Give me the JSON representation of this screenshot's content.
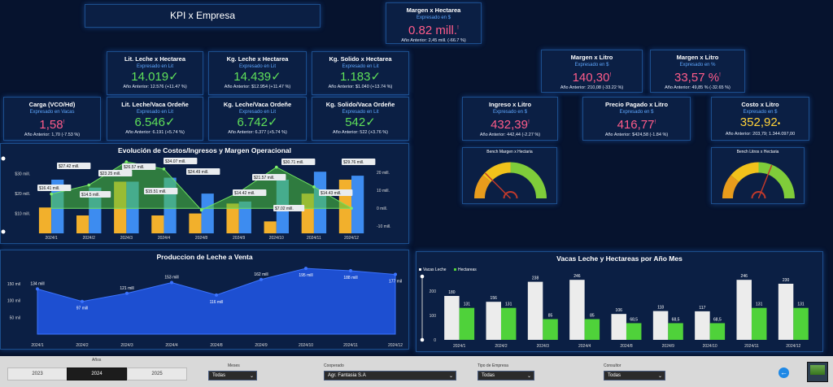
{
  "header": {
    "title": "KPI x Empresa"
  },
  "kpis": {
    "margen_hectarea": {
      "title": "Margen x Hectarea",
      "sub": "Expresado en $",
      "value": "0.82 mill.",
      "mark": "!",
      "prev": "Año Anterior: 2,45 mill. (-66.7 %)"
    },
    "lit_leche_hectarea": {
      "title": "Lit. Leche x Hectarea",
      "sub": "Expresado en Lit",
      "value": "14.019",
      "mark": "✓",
      "prev": "Año Anterior: 12.576 (+11.47 %)"
    },
    "kg_leche_hectarea": {
      "title": "Kg. Leche x Hectarea",
      "sub": "Expresado en Lit",
      "value": "14.439",
      "mark": "✓",
      "prev": "Año Anterior: $12.954 (+11.47 %)"
    },
    "kg_solido_hectarea": {
      "title": "Kg. Solido x Hectarea",
      "sub": "Expresado en Lit",
      "value": "1.183",
      "mark": "✓",
      "prev": "Año Anterior: $1.040 (+13.74 %)"
    },
    "carga": {
      "title": "Carga (VCO/Hd)",
      "sub": "Expresado en Vacas",
      "value": "1,58",
      "mark": "!",
      "prev": "Año Anterior: 1,70 (-7.53 %)"
    },
    "lit_leche_vaca": {
      "title": "Lit. Leche/Vaca Ordeñe",
      "sub": "Expresado en Lit",
      "value": "6.546",
      "mark": "✓",
      "prev": "Año Anterior: 6.191 (+5.74 %)"
    },
    "kg_leche_vaca": {
      "title": "Kg. Leche/Vaca Ordeñe",
      "sub": "Expresado en Lit",
      "value": "6.742",
      "mark": "✓",
      "prev": "Año Anterior: 6.377 (+5.74 %)"
    },
    "kg_solido_vaca": {
      "title": "Kg. Solido/Vaca Ordeñe",
      "sub": "Expresado en Lit",
      "value": "542",
      "mark": "✓",
      "prev": "Año Anterior: 522 (+3.76 %)"
    },
    "margen_litro": {
      "title": "Margen x Litro",
      "sub": "Expresado en $",
      "value": "140,30",
      "mark": "!",
      "prev": "Año Anterior: 210,08 (-33.22 %)"
    },
    "margen_litro_pct": {
      "title": "Margen x Litro",
      "sub": "Expresado en %",
      "value": "33,57 %",
      "mark": "!",
      "prev": "Año Anterior: 49,85 % (-32.65 %)"
    },
    "ingreso_litro": {
      "title": "Ingreso x Litro",
      "sub": "Expresado en $",
      "value": "432,39",
      "mark": "!",
      "prev": "Año Anterior: 442,44 (-2.27 %)"
    },
    "precio_litro": {
      "title": "Precio Pagado x Litro",
      "sub": "Expresado en $",
      "value": "416,77",
      "mark": "!",
      "prev": "Año Anterior: $424,58 (-1.84 %)"
    },
    "costo_litro": {
      "title": "Costo x Litro",
      "sub": "Expresado en $",
      "value": "352,92",
      "mark": "•",
      "prev": "Año Anterior: 203,79; 1.344.097,00"
    }
  },
  "gauges": [
    {
      "title": "Bench Margen x Hectaria",
      "needle": 0.25,
      "colors": [
        "#e89c1c",
        "#f1c21b",
        "#7fcc3a"
      ]
    },
    {
      "title": "Bench Litros x Hectaria",
      "needle": 0.62,
      "colors": [
        "#e89c1c",
        "#f1c21b",
        "#7fcc3a"
      ]
    }
  ],
  "chart_costos": {
    "title": "Evolución de Costos/Ingresos y Margen Operacional",
    "chart_data": {
      "type": "bar",
      "categories": [
        "2024/1",
        "2024/2",
        "2024/3",
        "2024/4",
        "2024/8",
        "2024/9",
        "2024/10",
        "2024/11",
        "2024/12"
      ],
      "series": [
        {
          "values": [
            13,
            9,
            26,
            9,
            10,
            15,
            6,
            20,
            27
          ],
          "color": "#f2b02c"
        },
        {
          "values": [
            27,
            23,
            26,
            28,
            20,
            16,
            27,
            31,
            29
          ],
          "color": "#3d8cf0"
        },
        {
          "values": [
            8,
            13,
            26,
            22,
            -1,
            9,
            23,
            12,
            0
          ],
          "color": "#4fc73c"
        }
      ],
      "labels": [
        "$16.41 mill.",
        "$27.42 mill.",
        "$14.5 mill.",
        "$23.25 mill.",
        "$26.57 mill.",
        "$15.51 mill.",
        "$34.07 mill.",
        "$24.49 mill.",
        "$14.42 mill.",
        "$21.57 mill.",
        "$7.02 mill.",
        "$30.71 mill.",
        "$14.43 mill.",
        "$29.76 mill."
      ],
      "y_left_ticks": [
        "$30 mill.",
        "$20 mill.",
        "$10 mill."
      ],
      "y_right_ticks": [
        "20 mill.",
        "10 mill.",
        "0 mill.",
        "-10 mill."
      ]
    }
  },
  "chart_produccion": {
    "title": "Produccion de Leche a Venta",
    "chart_data": {
      "type": "area",
      "categories": [
        "2024/1",
        "2024/2",
        "2024/3",
        "2024/4",
        "2024/8",
        "2024/9",
        "2024/10",
        "2024/11",
        "2024/12"
      ],
      "values": [
        134,
        97,
        121,
        153,
        116,
        162,
        195,
        188,
        177
      ],
      "labels": [
        "134 mill",
        "97 mill",
        "121 mill",
        "153 mill",
        "116 mill",
        "162 mill",
        "195 mill",
        "188 mill",
        "177 mil"
      ],
      "y_ticks": [
        "150 mil",
        "100 mil",
        "50 mil"
      ],
      "ylim": [
        0,
        200
      ]
    }
  },
  "chart_vacas": {
    "title": "Vacas Leche y Hectareas por Año Mes",
    "legend": [
      "Vacas Leche",
      "Hectareas"
    ],
    "chart_data": {
      "type": "bar",
      "categories": [
        "2024/1",
        "2024/2",
        "2024/3",
        "2024/4",
        "2024/8",
        "2024/9",
        "2024/10",
        "2024/11",
        "2024/12"
      ],
      "series": [
        {
          "name": "Vacas Leche",
          "values": [
            180,
            156,
            238,
            246,
            106,
            118,
            117,
            246,
            230
          ],
          "labels": [
            "180",
            "156",
            "238",
            "246",
            "106",
            "118",
            "117",
            "246",
            "230"
          ],
          "color": "#ececec"
        },
        {
          "name": "Hectareas",
          "values": [
            131,
            131,
            85,
            85,
            68.5,
            68.5,
            68.5,
            131,
            131
          ],
          "labels": [
            "131",
            "131",
            "85",
            "85",
            "68,5",
            "68,5",
            "68,5",
            "131",
            "131"
          ],
          "color": "#4fd23a"
        }
      ],
      "y_ticks": [
        "200",
        "100",
        "0"
      ],
      "ylim": [
        0,
        260
      ]
    }
  },
  "filters": {
    "anio_label": "Años",
    "years": [
      "2023",
      "2024",
      "2025"
    ],
    "selected_year": "2024",
    "meses_label": "Meses",
    "meses_value": "Todas",
    "cooperado_label": "Cooperado",
    "cooperado_value": "Agr. Fantasia S.A",
    "tipo_label": "Tipo de Empresa",
    "tipo_value": "Todas",
    "consultor_label": "Consultor",
    "consultor_value": "Todas"
  }
}
